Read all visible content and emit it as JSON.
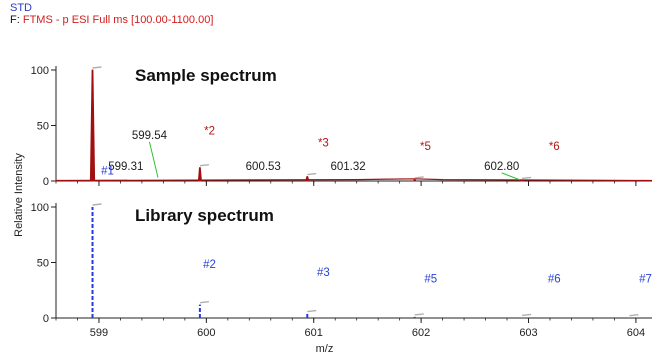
{
  "header": {
    "name": "STD",
    "scan_prefix": "F:",
    "scan_filter": "FTMS - p ESI Full ms [100.00-1100.00]"
  },
  "colors": {
    "sample": "#a01010",
    "sample_label": "#b01818",
    "library": "#2838e0",
    "library_label": "#2a44d8",
    "centroid_label": "#202020",
    "leader": "#30c030"
  },
  "chart_data": {
    "type": "line",
    "xlabel": "m/z",
    "ylabel": "Relative Intensity",
    "xlim": [
      598.6,
      604.15
    ],
    "x_ticks": [
      599,
      600,
      601,
      602,
      603,
      604
    ],
    "panels": [
      {
        "id": "sample",
        "title": "Sample spectrum",
        "ylim": [
          0,
          100
        ],
        "y_ticks": [
          0,
          50,
          100
        ],
        "peaks": [
          {
            "mz": 598.94,
            "intensity": 100
          },
          {
            "mz": 599.94,
            "intensity": 12
          },
          {
            "mz": 600.94,
            "intensity": 4
          },
          {
            "mz": 601.94,
            "intensity": 1
          },
          {
            "mz": 602.94,
            "intensity": 0.5
          }
        ],
        "baseline": [
          {
            "mz": 601.4,
            "intensity": 0.8
          },
          {
            "mz": 601.94,
            "intensity": 1.5
          },
          {
            "mz": 602.2,
            "intensity": 0.8
          }
        ],
        "centroid_labels": [
          {
            "text": "599.54",
            "mz": 599.47,
            "intensity": 38,
            "leader_to": [
              599.55,
              3
            ]
          },
          {
            "text": "599.31",
            "mz": 599.25,
            "intensity": 10
          },
          {
            "text": "600.53",
            "mz": 600.53,
            "intensity": 10
          },
          {
            "text": "601.32",
            "mz": 601.32,
            "intensity": 10
          },
          {
            "text": "602.80",
            "mz": 602.75,
            "intensity": 10,
            "leader_to": [
              602.92,
              1
            ]
          }
        ],
        "peak_labels": [
          {
            "text": "#1",
            "mz": 599.08,
            "intensity": 6,
            "color": "library"
          },
          {
            "text": "*2",
            "mz": 600.03,
            "intensity": 42
          },
          {
            "text": "*3",
            "mz": 601.09,
            "intensity": 31
          },
          {
            "text": "*5",
            "mz": 602.04,
            "intensity": 28
          },
          {
            "text": "*6",
            "mz": 603.24,
            "intensity": 28
          }
        ]
      },
      {
        "id": "library",
        "title": "Library spectrum",
        "ylim": [
          0,
          100
        ],
        "y_ticks": [
          0,
          50,
          100
        ],
        "peaks": [
          {
            "mz": 598.94,
            "intensity": 100
          },
          {
            "mz": 599.94,
            "intensity": 12
          },
          {
            "mz": 600.94,
            "intensity": 4
          },
          {
            "mz": 601.94,
            "intensity": 1
          },
          {
            "mz": 602.94,
            "intensity": 0.5
          },
          {
            "mz": 603.94,
            "intensity": 0.3
          }
        ],
        "peak_labels": [
          {
            "text": "#2",
            "mz": 600.03,
            "intensity": 45
          },
          {
            "text": "#3",
            "mz": 601.09,
            "intensity": 38
          },
          {
            "text": "#5",
            "mz": 602.09,
            "intensity": 32
          },
          {
            "text": "#6",
            "mz": 603.24,
            "intensity": 32
          },
          {
            "text": "#7",
            "mz": 604.09,
            "intensity": 32
          }
        ]
      }
    ]
  }
}
